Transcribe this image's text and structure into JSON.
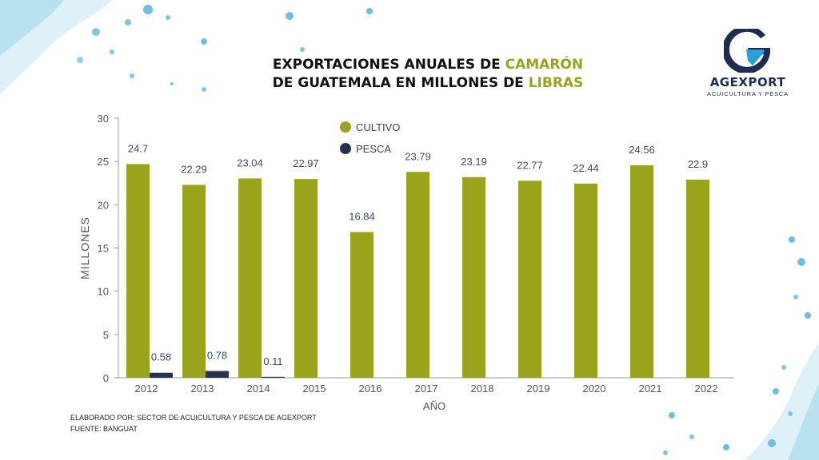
{
  "header": {
    "title_line1_a": "EXPORTACIONES ANUALES DE ",
    "title_line1_b": "CAMARÓN",
    "title_line2_a": "DE GUATEMALA EN MILLONES DE ",
    "title_line2_b": "LIBRAS"
  },
  "logo": {
    "brand": "AGEXPORT",
    "subtitle": "ACUICULTURA Y PESCA",
    "icon": "agexport-g-logo"
  },
  "footer": {
    "credit": "ELABORADO POR: SECTOR DE ACUICULTURA Y PESCA DE AGEXPORT",
    "source": "FUENTE:  BANGUAT"
  },
  "colors": {
    "cultivo": "#9aa31c",
    "pesca": "#26324f",
    "accent": "#9aa31c"
  },
  "chart_data": {
    "type": "bar",
    "categories": [
      "2012",
      "2013",
      "2014",
      "2015",
      "2016",
      "2017",
      "2018",
      "2019",
      "2020",
      "2021",
      "2022"
    ],
    "series": [
      {
        "name": "CULTIVO",
        "values": [
          24.7,
          22.29,
          23.04,
          22.97,
          16.84,
          23.79,
          23.19,
          22.77,
          22.44,
          24.56,
          22.9
        ],
        "labels": [
          "24.7",
          "22.29",
          "23.04",
          "22.97",
          "16.84",
          "23.79",
          "23.19",
          "22.77",
          "22.44",
          "24.56",
          "22.9"
        ]
      },
      {
        "name": "PESCA",
        "values": [
          0.58,
          0.78,
          0.11,
          0,
          0,
          0,
          0,
          0,
          0,
          0,
          0
        ],
        "labels": [
          "0.58",
          "0.78",
          "0.11",
          "",
          "",
          "",
          "",
          "",
          "",
          "",
          ""
        ]
      }
    ],
    "xlabel": "AÑO",
    "ylabel": "MILLONES",
    "ylim": [
      0,
      30
    ],
    "yticks": [
      "0",
      "5",
      "10",
      "15",
      "20",
      "25",
      "30"
    ],
    "grid": false,
    "legend": "top-center"
  }
}
